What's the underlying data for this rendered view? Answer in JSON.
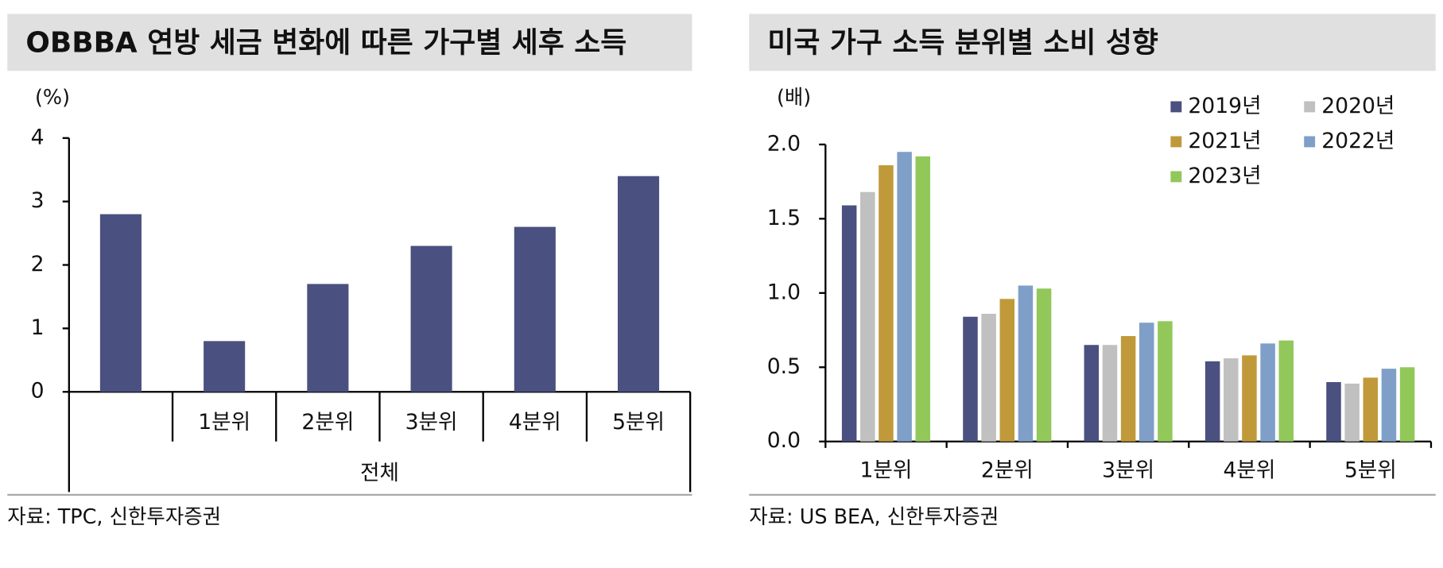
{
  "chart_data": [
    {
      "type": "bar",
      "title": "OBBBA 연방 세금 변화에 따른 가구별 세후 소득",
      "unit_label": "(%)",
      "categories": [
        null,
        "1분위",
        "2분위",
        "3분위",
        "4분위",
        "5분위"
      ],
      "x_group_label": "전체",
      "values": [
        2.8,
        0.8,
        1.7,
        2.3,
        2.6,
        3.4
      ],
      "color": "#4a5080",
      "ylim": [
        0,
        4
      ],
      "yticks": [
        0,
        1,
        2,
        3,
        4
      ],
      "source": "자료: TPC, 신한투자증권"
    },
    {
      "type": "grouped_bar",
      "title": "미국 가구 소득 분위별 소비 성향",
      "unit_label": "(배)",
      "categories": [
        "1분위",
        "2분위",
        "3분위",
        "4분위",
        "5분위"
      ],
      "series": [
        {
          "name": "2019년",
          "color": "#4a5080",
          "values": [
            1.59,
            0.84,
            0.65,
            0.54,
            0.4
          ]
        },
        {
          "name": "2020년",
          "color": "#c0c0c0",
          "values": [
            1.68,
            0.86,
            0.65,
            0.56,
            0.39
          ]
        },
        {
          "name": "2021년",
          "color": "#c09a3a",
          "values": [
            1.86,
            0.96,
            0.71,
            0.58,
            0.43
          ]
        },
        {
          "name": "2022년",
          "color": "#7f9fc8",
          "values": [
            1.95,
            1.05,
            0.8,
            0.66,
            0.49
          ]
        },
        {
          "name": "2023년",
          "color": "#92c85a",
          "values": [
            1.92,
            1.03,
            0.81,
            0.68,
            0.5
          ]
        }
      ],
      "ylim": [
        0,
        2.0
      ],
      "yticks": [
        {
          "value": 0,
          "label": "0.0"
        },
        0.5,
        {
          "value": 1,
          "label": "1.0"
        },
        1.5,
        {
          "value": 2,
          "label": "2.0"
        }
      ],
      "legend": "upper right",
      "source": "자료: US BEA, 신한투자증권"
    }
  ]
}
